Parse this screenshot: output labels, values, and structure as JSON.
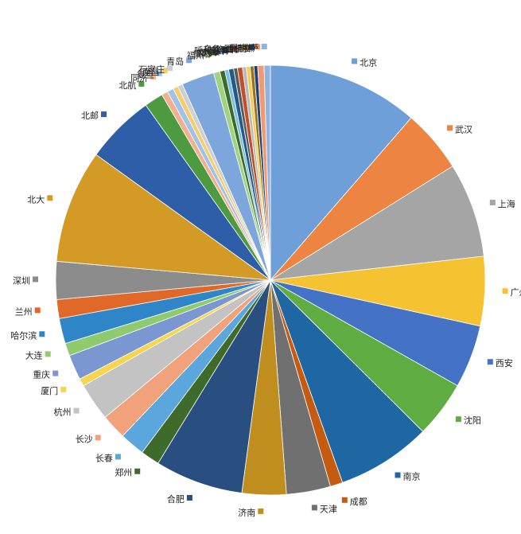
{
  "chart_data": {
    "type": "pie",
    "title": "",
    "slices": [
      {
        "label": "北京",
        "value": 12.0,
        "color": "#6f9fd8"
      },
      {
        "label": "武汉",
        "value": 5.0,
        "color": "#ee8442"
      },
      {
        "label": "上海",
        "value": 7.5,
        "color": "#a5a5a5"
      },
      {
        "label": "广州",
        "value": 5.5,
        "color": "#f5c231"
      },
      {
        "label": "西安",
        "value": 5.0,
        "color": "#4472c4"
      },
      {
        "label": "沈阳",
        "value": 4.5,
        "color": "#5eac42"
      },
      {
        "label": "南京",
        "value": 7.5,
        "color": "#1f67a3"
      },
      {
        "label": "成都",
        "value": 1.0,
        "color": "#c55a11"
      },
      {
        "label": "天津",
        "value": 3.5,
        "color": "#707070"
      },
      {
        "label": "济南",
        "value": 3.5,
        "color": "#bf8e1f"
      },
      {
        "label": "合肥",
        "value": 7.0,
        "color": "#284f80"
      },
      {
        "label": "郑州",
        "value": 1.5,
        "color": "#3e6a2c"
      },
      {
        "label": "长春",
        "value": 2.0,
        "color": "#5ba6dd"
      },
      {
        "label": "长沙",
        "value": 2.0,
        "color": "#f2a27a"
      },
      {
        "label": "杭州",
        "value": 3.0,
        "color": "#c3c3c3"
      },
      {
        "label": "厦门",
        "value": 0.6,
        "color": "#f7d64d"
      },
      {
        "label": "重庆",
        "value": 2.0,
        "color": "#7a97d1"
      },
      {
        "label": "大连",
        "value": 1.0,
        "color": "#8fca6f"
      },
      {
        "label": "哈尔滨",
        "value": 2.0,
        "color": "#2e86c9"
      },
      {
        "label": "兰州",
        "value": 1.5,
        "color": "#e0692a"
      },
      {
        "label": "深圳",
        "value": 3.0,
        "color": "#8c8c8c"
      },
      {
        "label": "北大",
        "value": 9.0,
        "color": "#d49a26"
      },
      {
        "label": "北邮",
        "value": 5.5,
        "color": "#2f5ea8"
      },
      {
        "label": "北航",
        "value": 1.5,
        "color": "#4e9a41"
      },
      {
        "label": "同济",
        "value": 0.5,
        "color": "#f3b08f"
      },
      {
        "label": "复旦",
        "value": 0.5,
        "color": "#9ec2e8"
      },
      {
        "label": "南昌",
        "value": 0.4,
        "color": "#f6cc6c"
      },
      {
        "label": "石家庄",
        "value": 0.4,
        "color": "#cfcfcf"
      },
      {
        "label": "青岛",
        "value": 2.6,
        "color": "#7da6dc"
      },
      {
        "label": "福州",
        "value": 0.5,
        "color": "#9fd37f"
      },
      {
        "label": "贵阳",
        "value": 0.4,
        "color": "#3b6b2a"
      },
      {
        "label": "南宁",
        "value": 0.3,
        "color": "#77bfe6"
      },
      {
        "label": "太原",
        "value": 0.4,
        "color": "#245a8a"
      },
      {
        "label": "银川",
        "value": 0.3,
        "color": "#5a5a5a"
      },
      {
        "label": "呼和浩特",
        "value": 0.4,
        "color": "#c0512b"
      },
      {
        "label": "海口",
        "value": 0.3,
        "color": "#b9b9b9"
      },
      {
        "label": "乌鲁木齐",
        "value": 0.3,
        "color": "#f3cf5a"
      },
      {
        "label": "西宁",
        "value": 0.3,
        "color": "#9b7224"
      },
      {
        "label": "昆明",
        "value": 0.3,
        "color": "#1f3f6e"
      },
      {
        "label": "桂林",
        "value": 0.5,
        "color": "#f09a73"
      },
      {
        "label": "拉萨",
        "value": 0.5,
        "color": "#8fb4e0"
      }
    ],
    "legend": "labels around pie"
  }
}
